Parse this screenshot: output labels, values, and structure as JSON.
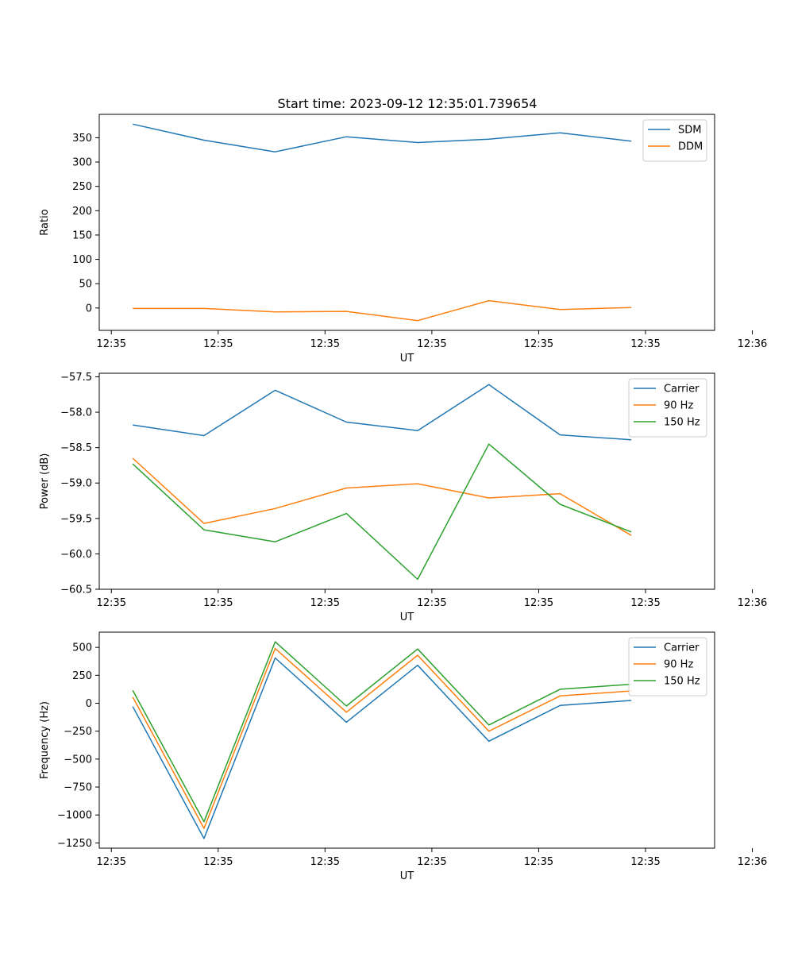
{
  "figure_title": "Start time: 2023-09-12 12:35:01.739654",
  "colors": {
    "blue": "#1f77b4",
    "orange": "#ff7f0e",
    "green": "#2ca02c"
  },
  "chart_data": [
    {
      "type": "line",
      "title": "Start time: 2023-09-12 12:35:01.739654",
      "xlabel": "UT",
      "ylabel": "Ratio",
      "x": [
        1,
        2,
        3,
        4,
        5,
        6,
        7,
        8
      ],
      "xlim": [
        0.53,
        9.17
      ],
      "xticks": [
        {
          "pos": 0.7,
          "label": "12:35"
        },
        {
          "pos": 2.2,
          "label": "12:35"
        },
        {
          "pos": 3.7,
          "label": "12:35"
        },
        {
          "pos": 5.2,
          "label": "12:35"
        },
        {
          "pos": 6.7,
          "label": "12:35"
        },
        {
          "pos": 8.2,
          "label": "12:35"
        },
        {
          "pos": 9.7,
          "label": "12:36"
        }
      ],
      "ylim": [
        -46,
        398
      ],
      "yticks": [
        0,
        50,
        100,
        150,
        200,
        250,
        300,
        350
      ],
      "legend_position": "top-right",
      "series": [
        {
          "name": "SDM",
          "color": "#1f77b4",
          "values": [
            378,
            345,
            321,
            352,
            340,
            347,
            360,
            343
          ]
        },
        {
          "name": "DDM",
          "color": "#ff7f0e",
          "values": [
            -1,
            -1,
            -8,
            -7,
            -26,
            15,
            -3,
            1
          ]
        }
      ]
    },
    {
      "type": "line",
      "title": "",
      "xlabel": "UT",
      "ylabel": "Power (dB)",
      "x": [
        1,
        2,
        3,
        4,
        5,
        6,
        7,
        8
      ],
      "xlim": [
        0.53,
        9.17
      ],
      "xticks": [
        {
          "pos": 0.7,
          "label": "12:35"
        },
        {
          "pos": 2.2,
          "label": "12:35"
        },
        {
          "pos": 3.7,
          "label": "12:35"
        },
        {
          "pos": 5.2,
          "label": "12:35"
        },
        {
          "pos": 6.7,
          "label": "12:35"
        },
        {
          "pos": 8.2,
          "label": "12:35"
        },
        {
          "pos": 9.7,
          "label": "12:36"
        }
      ],
      "ylim": [
        -60.5,
        -57.45
      ],
      "yticks": [
        -60.5,
        -60.0,
        -59.5,
        -59.0,
        -58.5,
        -58.0,
        -57.5
      ],
      "ytick_labels": [
        "−60.5",
        "−60.0",
        "−59.5",
        "−59.0",
        "−58.5",
        "−58.0",
        "−57.5"
      ],
      "legend_position": "top-right",
      "series": [
        {
          "name": "Carrier",
          "color": "#1f77b4",
          "values": [
            -58.18,
            -58.33,
            -57.69,
            -58.14,
            -58.26,
            -57.61,
            -58.32,
            -58.39
          ]
        },
        {
          "name": "90 Hz",
          "color": "#ff7f0e",
          "values": [
            -58.65,
            -59.57,
            -59.36,
            -59.07,
            -59.01,
            -59.21,
            -59.15,
            -59.74
          ]
        },
        {
          "name": "150 Hz",
          "color": "#2ca02c",
          "values": [
            -58.73,
            -59.66,
            -59.83,
            -59.43,
            -60.36,
            -58.45,
            -59.3,
            -59.69
          ]
        }
      ]
    },
    {
      "type": "line",
      "title": "",
      "xlabel": "UT",
      "ylabel": "Frequency (Hz)",
      "x": [
        1,
        2,
        3,
        4,
        5,
        6,
        7,
        8
      ],
      "xlim": [
        0.53,
        9.17
      ],
      "xticks": [
        {
          "pos": 0.7,
          "label": "12:35"
        },
        {
          "pos": 2.2,
          "label": "12:35"
        },
        {
          "pos": 3.7,
          "label": "12:35"
        },
        {
          "pos": 5.2,
          "label": "12:35"
        },
        {
          "pos": 6.7,
          "label": "12:35"
        },
        {
          "pos": 8.2,
          "label": "12:35"
        },
        {
          "pos": 9.7,
          "label": "12:36"
        }
      ],
      "ylim": [
        -1297,
        636
      ],
      "yticks": [
        -1250,
        -1000,
        -750,
        -500,
        -250,
        0,
        250,
        500
      ],
      "ytick_labels": [
        "−1250",
        "−1000",
        "−750",
        "−500",
        "−250",
        "0",
        "250",
        "500"
      ],
      "legend_position": "top-right",
      "series": [
        {
          "name": "Carrier",
          "color": "#1f77b4",
          "values": [
            -30,
            -1210,
            405,
            -170,
            340,
            -340,
            -20,
            25
          ]
        },
        {
          "name": "90 Hz",
          "color": "#ff7f0e",
          "values": [
            55,
            -1120,
            490,
            -80,
            430,
            -250,
            65,
            110
          ]
        },
        {
          "name": "150 Hz",
          "color": "#2ca02c",
          "values": [
            115,
            -1060,
            550,
            -25,
            485,
            -195,
            125,
            170
          ]
        }
      ]
    }
  ]
}
